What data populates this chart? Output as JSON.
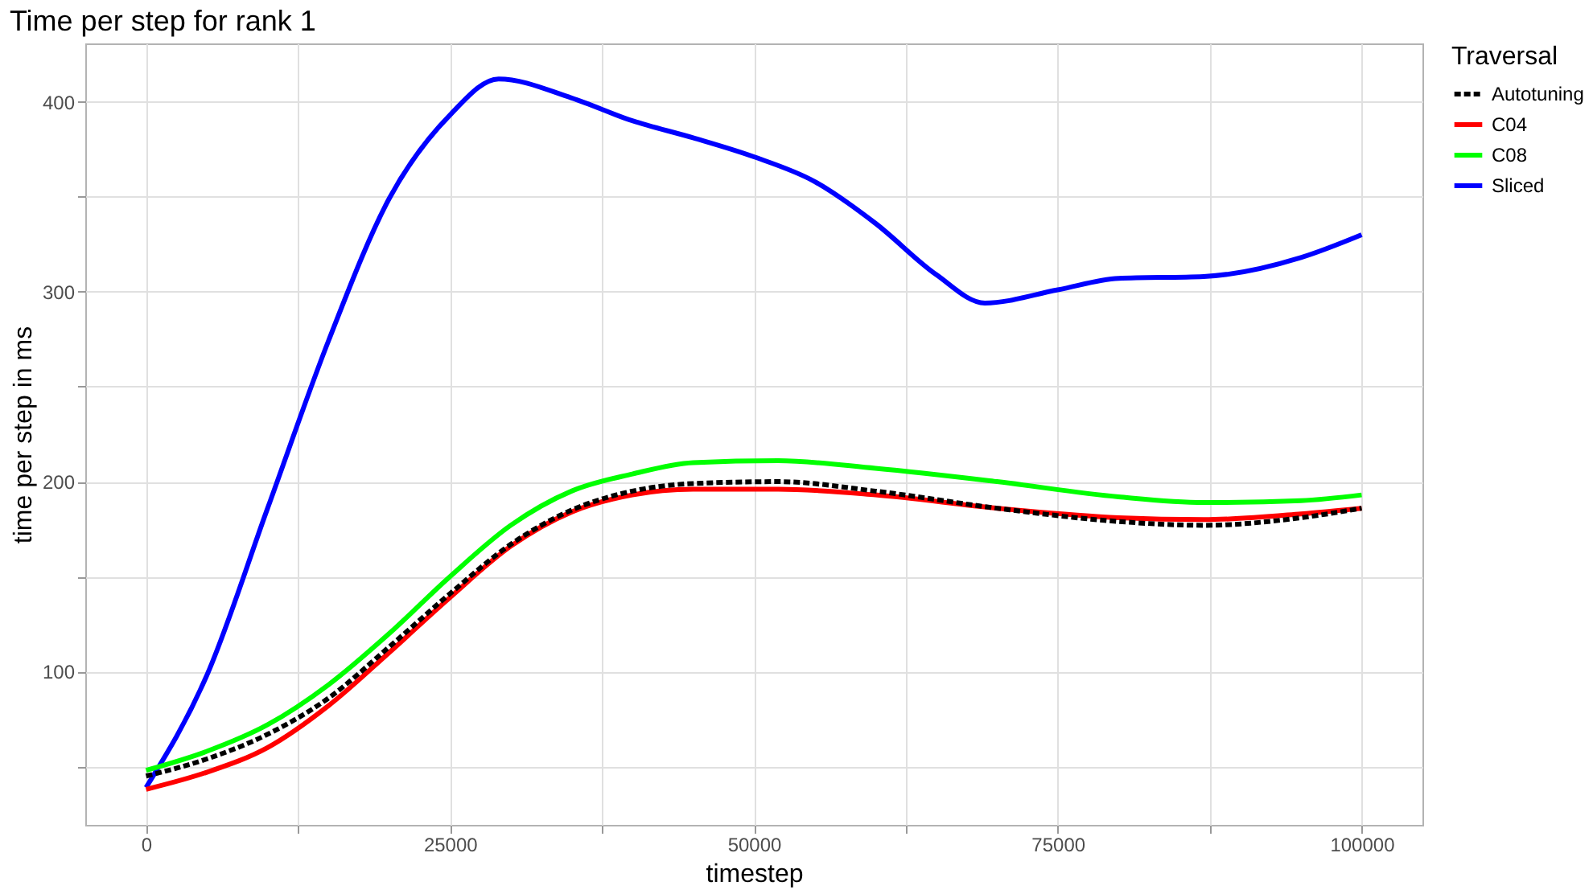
{
  "chart_data": {
    "type": "line",
    "title": "Time per step for rank 1",
    "xlabel": "timestep",
    "ylabel": "time per step in ms",
    "legend_title": "Traversal",
    "legend": "right",
    "grid": true,
    "x": [
      0,
      5000,
      10000,
      15000,
      20000,
      25000,
      30000,
      35000,
      40000,
      45000,
      52000,
      60000,
      70000,
      80000,
      87000,
      95000,
      100000
    ],
    "xlim": [
      -5000,
      105000
    ],
    "ylim": [
      19.3,
      430.7
    ],
    "xticks": [
      0,
      {
        "value": 12500,
        "label": null
      },
      25000,
      {
        "value": 37500,
        "label": null
      },
      50000,
      {
        "value": 62500,
        "label": null
      },
      75000,
      {
        "value": 87500,
        "label": null
      },
      100000
    ],
    "yticks": [
      {
        "value": 50,
        "label": null
      },
      100,
      {
        "value": 150,
        "label": null
      },
      200,
      {
        "value": 250,
        "label": null
      },
      300,
      {
        "value": 350,
        "label": null
      },
      400
    ],
    "series": [
      {
        "name": "Autotuning",
        "color": "#000000",
        "line_style": "dashed",
        "values": [
          45,
          54,
          67,
          86,
          113,
          141,
          167,
          185,
          195,
          199,
          200,
          195,
          186,
          179,
          177,
          181,
          186
        ]
      },
      {
        "name": "C04",
        "color": "#ff0000",
        "line_style": "solid",
        "values": [
          38,
          47,
          60,
          82,
          110,
          139,
          166,
          184,
          193,
          196,
          196,
          193,
          186,
          181,
          180,
          183,
          186
        ]
      },
      {
        "name": "C08",
        "color": "#00ff00",
        "line_style": "solid",
        "values": [
          48,
          58,
          72,
          93,
          120,
          150,
          177,
          195,
          204,
          210,
          211,
          207,
          200,
          192,
          189,
          190,
          193
        ]
      },
      {
        "name": "Sliced",
        "color": "#0000ff",
        "line_style": "solid",
        "x": [
          0,
          5000,
          10000,
          15000,
          20000,
          25000,
          29000,
          35000,
          40000,
          45000,
          50000,
          55000,
          60000,
          65000,
          69000,
          75000,
          80000,
          87000,
          95000,
          100000
        ],
        "values": [
          39,
          98,
          186,
          274,
          349,
          393,
          412,
          402,
          390,
          381,
          371,
          358,
          336,
          309,
          294,
          301,
          307,
          308,
          318,
          330
        ]
      }
    ]
  }
}
